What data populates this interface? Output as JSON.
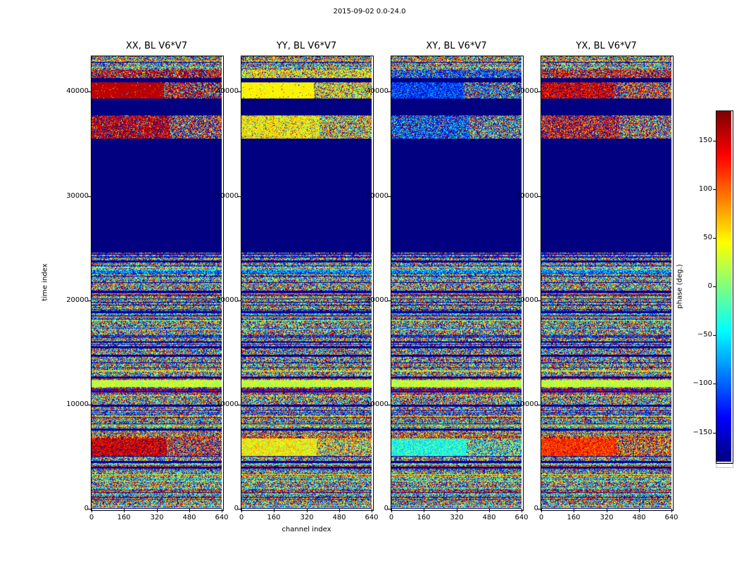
{
  "figure": {
    "title": "2015-09-02 0.0-24.0",
    "background_color": "#ffffff"
  },
  "chart_data": {
    "type": "heatmap",
    "title": "2015-09-02 0.0-24.0",
    "xlabel": "channel index",
    "ylabel": "time index",
    "colorbar_label": "phase (deg.)",
    "colormap": "jet",
    "flagged_color": "#000080",
    "value_range": [
      -180,
      180
    ],
    "x_range": [
      0,
      640
    ],
    "y_range": [
      0,
      43400
    ],
    "x_ticks": [
      0,
      160,
      320,
      480,
      640
    ],
    "x_tick_labels": [
      "0",
      "160",
      "320",
      "480",
      "640"
    ],
    "y_ticks": [
      0,
      10000,
      20000,
      30000,
      40000
    ],
    "y_tick_labels": [
      "0",
      "10000",
      "20000",
      "30000",
      "40000"
    ],
    "colorbar_ticks": [
      150,
      100,
      50,
      0,
      -50,
      -100,
      -150
    ],
    "colorbar_tick_labels": [
      "150",
      "100",
      "50",
      "0",
      "−50",
      "−100",
      "−150"
    ],
    "panels": [
      {
        "pol": "XX",
        "title": "XX, BL V6*V7",
        "band_phase": 158,
        "band_spread": 22
      },
      {
        "pol": "YY",
        "title": "YY, BL V6*V7",
        "band_phase": 48,
        "band_spread": 22
      },
      {
        "pol": "XY",
        "title": "XY, BL V6*V7",
        "band_phase": -118,
        "band_spread": 110
      },
      {
        "pol": "YX",
        "title": "YX, BL V6*V7",
        "band_phase": 148,
        "band_spread": 95
      }
    ],
    "regions": [
      {
        "kind": "noise",
        "t": [
          42150,
          43400
        ]
      },
      {
        "kind": "band",
        "t": [
          41350,
          42150
        ],
        "mix": 0.6,
        "spread": 80
      },
      {
        "kind": "flagged",
        "t": [
          40950,
          41350
        ]
      },
      {
        "kind": "band_split",
        "t": [
          39350,
          40950
        ],
        "split_channel": 356,
        "left_mix": 0.96,
        "right_mix": 0.45,
        "spread_add": 0
      },
      {
        "kind": "flagged",
        "t": [
          37750,
          39350
        ]
      },
      {
        "kind": "band_split",
        "t": [
          35550,
          37750
        ],
        "split_channel": 384,
        "left_mix": 0.8,
        "right_mix": 0.35,
        "spread_add": 55
      },
      {
        "kind": "flagged",
        "t": [
          24550,
          35550
        ]
      },
      {
        "kind": "noise",
        "t": [
          0,
          24550
        ]
      }
    ],
    "flag_lines": [
      3900,
      4450,
      7600,
      9900,
      12550,
      14700,
      15500,
      18850,
      20800,
      23700
    ],
    "flag_line_halfwidth": 100,
    "coherent_bands": [
      {
        "t": [
          11650,
          12350
        ],
        "phase": 25,
        "spread": 70
      },
      {
        "t": [
          5050,
          6750
        ],
        "phase_by_panel": [
          150,
          45,
          -35,
          120
        ],
        "spread": 85,
        "split_channel": 370
      }
    ]
  }
}
